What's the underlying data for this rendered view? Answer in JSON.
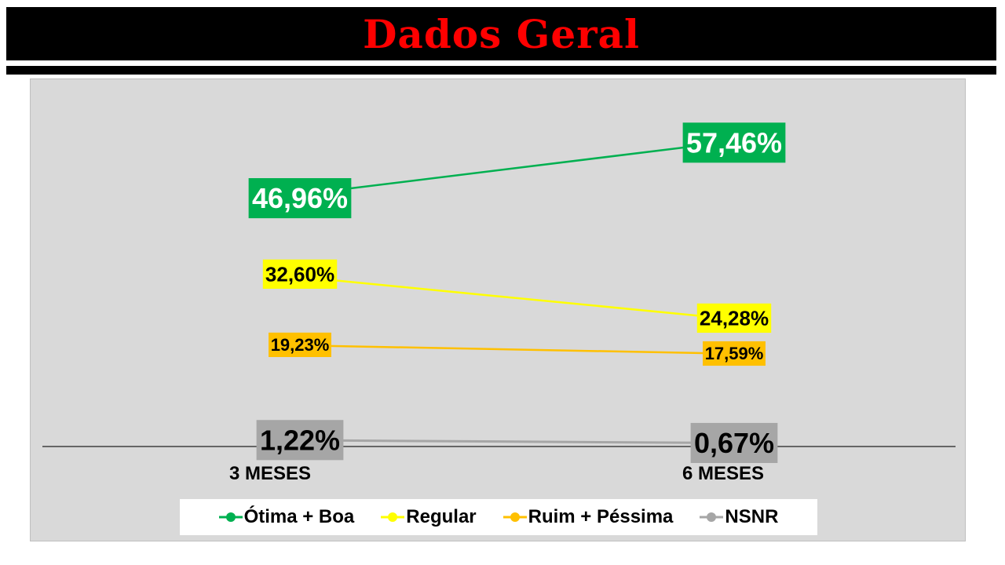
{
  "header": {
    "title": "Dados Geral"
  },
  "chart_data": {
    "type": "line",
    "categories": [
      "3 MESES",
      "6 MESES"
    ],
    "series": [
      {
        "name": "Ótima + Boa",
        "color": "#00b050",
        "values": [
          46.96,
          57.46
        ],
        "labels": [
          "46,96%",
          "57,46%"
        ],
        "label_text_color": "#ffffff"
      },
      {
        "name": "Regular",
        "color": "#ffff00",
        "values": [
          32.6,
          24.28
        ],
        "labels": [
          "32,60%",
          "24,28%"
        ],
        "label_text_color": "#000000"
      },
      {
        "name": "Ruim + Péssima",
        "color": "#ffc000",
        "values": [
          19.23,
          17.59
        ],
        "labels": [
          "19,23%",
          "17,59%"
        ],
        "label_text_color": "#000000"
      },
      {
        "name": "NSNR",
        "color": "#a6a6a6",
        "values": [
          1.22,
          0.67
        ],
        "labels": [
          "1,22%",
          "0,67%"
        ],
        "label_text_color": "#000000"
      }
    ],
    "ylim": [
      0,
      65
    ],
    "grid": false,
    "legend_position": "bottom"
  }
}
